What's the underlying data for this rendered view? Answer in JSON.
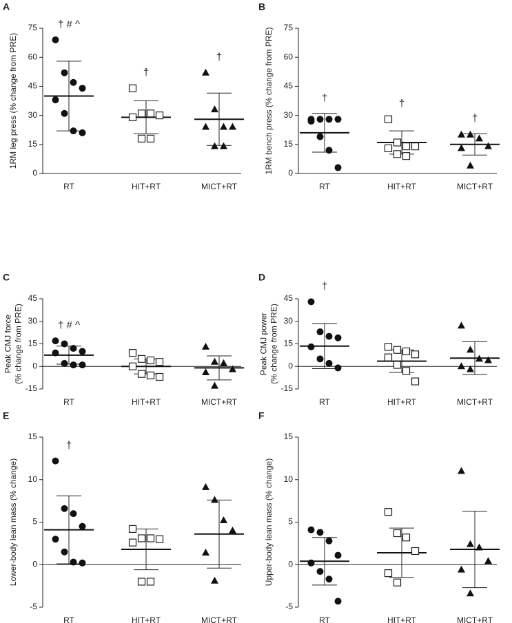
{
  "chart_data": [
    {
      "type": "dotplot",
      "label": "A",
      "ylabel": [
        "1RM leg press (% change from PRE)"
      ],
      "categories": [
        "RT",
        "HIT+RT",
        "MICT+RT"
      ],
      "ylim": [
        0,
        75
      ],
      "yticks": [
        0,
        15,
        30,
        45,
        60,
        75
      ],
      "groups": [
        {
          "marker": "circle",
          "values": [
            69,
            52,
            47,
            44,
            38,
            31,
            22,
            21
          ],
          "mean": 40,
          "sd": 18
        },
        {
          "marker": "square",
          "values": [
            44,
            31,
            31,
            30,
            29,
            18,
            18
          ],
          "mean": 29,
          "sd": 8.5
        },
        {
          "marker": "triangle",
          "values": [
            52,
            33,
            24,
            24,
            24,
            14,
            14
          ],
          "mean": 28,
          "sd": 13.5
        }
      ],
      "annotations": [
        "† # ^",
        "†",
        "†"
      ]
    },
    {
      "type": "dotplot",
      "label": "B",
      "ylabel": [
        "1RM bench press (% change from PRE)"
      ],
      "categories": [
        "RT",
        "HIT+RT",
        "MICT+RT"
      ],
      "ylim": [
        0,
        75
      ],
      "yticks": [
        0,
        15,
        30,
        45,
        60,
        75
      ],
      "groups": [
        {
          "marker": "circle",
          "values": [
            28,
            28,
            28,
            28,
            27,
            19,
            12,
            3
          ],
          "mean": 21,
          "sd": 10
        },
        {
          "marker": "square",
          "values": [
            28,
            16,
            14,
            14,
            13,
            10,
            9
          ],
          "mean": 16,
          "sd": 6
        },
        {
          "marker": "triangle",
          "values": [
            20,
            20,
            18,
            14,
            13,
            4
          ],
          "mean": 15,
          "sd": 5.5
        }
      ],
      "annotations": [
        "†",
        "†",
        "†"
      ]
    },
    {
      "type": "dotplot",
      "label": "C",
      "ylabel": [
        "Peak CMJ force",
        "(% change from PRE)"
      ],
      "categories": [
        "RT",
        "HIT+RT",
        "MICT+RT"
      ],
      "ylim": [
        -15,
        45
      ],
      "yticks": [
        -15,
        0,
        15,
        30,
        45
      ],
      "groups": [
        {
          "marker": "circle",
          "values": [
            17,
            15,
            12,
            10,
            9,
            2,
            1,
            1
          ],
          "mean": 7.5,
          "sd": 6
        },
        {
          "marker": "square",
          "values": [
            9,
            5,
            4,
            3,
            0,
            -5,
            -6,
            -7
          ],
          "mean": 0,
          "sd": 5
        },
        {
          "marker": "triangle",
          "values": [
            13,
            3,
            2,
            -2,
            -4,
            -13
          ],
          "mean": -1,
          "sd": 8
        }
      ],
      "annotations": [
        "† # ^",
        null,
        null
      ]
    },
    {
      "type": "dotplot",
      "label": "D",
      "ylabel": [
        "Peak CMJ power",
        "(% change from PRE)"
      ],
      "categories": [
        "RT",
        "HIT+RT",
        "MICT+RT"
      ],
      "ylim": [
        -15,
        45
      ],
      "yticks": [
        -15,
        0,
        15,
        30,
        45
      ],
      "groups": [
        {
          "marker": "circle",
          "values": [
            43,
            23,
            20,
            19,
            13,
            5,
            2,
            -1
          ],
          "mean": 13.5,
          "sd": 15
        },
        {
          "marker": "square",
          "values": [
            13,
            11,
            10,
            8,
            6,
            1,
            -3,
            -10
          ],
          "mean": 3.5,
          "sd": 7.5
        },
        {
          "marker": "triangle",
          "values": [
            27,
            11,
            5,
            4,
            0,
            -2
          ],
          "mean": 5.5,
          "sd": 11
        }
      ],
      "annotations": [
        "†",
        null,
        null
      ]
    },
    {
      "type": "dotplot",
      "label": "E",
      "ylabel": [
        "Lower-body lean mass (% change)"
      ],
      "categories": [
        "RT",
        "HIT+RT",
        "MICT+RT"
      ],
      "ylim": [
        -5,
        15
      ],
      "yticks": [
        -5,
        0,
        5,
        10,
        15
      ],
      "groups": [
        {
          "marker": "circle",
          "values": [
            12.2,
            6.6,
            6,
            4.5,
            3,
            1.5,
            0.3,
            0.2
          ],
          "mean": 4.1,
          "sd": 4
        },
        {
          "marker": "square",
          "values": [
            4.2,
            3.1,
            3.1,
            3,
            2.6,
            -2,
            -2
          ],
          "mean": 1.8,
          "sd": 2.4
        },
        {
          "marker": "triangle",
          "values": [
            9.1,
            7.6,
            5.2,
            4,
            1.4,
            -1.9
          ],
          "mean": 3.6,
          "sd": 4
        }
      ],
      "annotations": [
        "†",
        null,
        null
      ]
    },
    {
      "type": "dotplot",
      "label": "F",
      "ylabel": [
        "Upper-body lean mass (% change)"
      ],
      "categories": [
        "RT",
        "HIT+RT",
        "MICT+RT"
      ],
      "ylim": [
        -5,
        15
      ],
      "yticks": [
        -5,
        0,
        5,
        10,
        15
      ],
      "groups": [
        {
          "marker": "circle",
          "values": [
            4.1,
            3.8,
            2.8,
            1.1,
            0.2,
            -0.8,
            -1.7,
            -4.3
          ],
          "mean": 0.4,
          "sd": 2.8
        },
        {
          "marker": "square",
          "values": [
            6.2,
            3.7,
            3.2,
            1.6,
            -1,
            -2.1
          ],
          "mean": 1.4,
          "sd": 2.9
        },
        {
          "marker": "triangle",
          "values": [
            11,
            2.4,
            2,
            0.4,
            -0.6,
            -3.4
          ],
          "mean": 1.8,
          "sd": 4.5
        }
      ],
      "annotations": [
        null,
        null,
        null
      ]
    }
  ]
}
